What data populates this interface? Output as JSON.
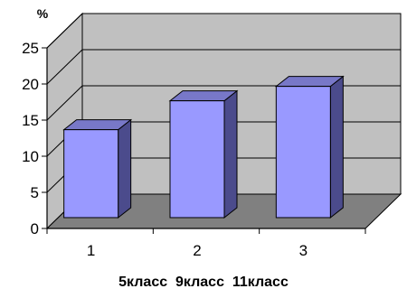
{
  "chart_data": {
    "type": "bar",
    "style": "3d-column",
    "unit_label": "%",
    "categories": [
      "1",
      "2",
      "3"
    ],
    "values": [
      16,
      20,
      22
    ],
    "ylim": [
      0,
      25
    ],
    "yticks": [
      0,
      5,
      10,
      15,
      20,
      25
    ],
    "grid": true,
    "caption": "5класс  9класс  11класс",
    "colors": {
      "bar_front": "#9999ff",
      "bar_side": "#4b4b8c",
      "bar_top": "#7878c8",
      "wall": "#c0c0c0",
      "floor": "#808080",
      "grid": "#000000"
    }
  }
}
